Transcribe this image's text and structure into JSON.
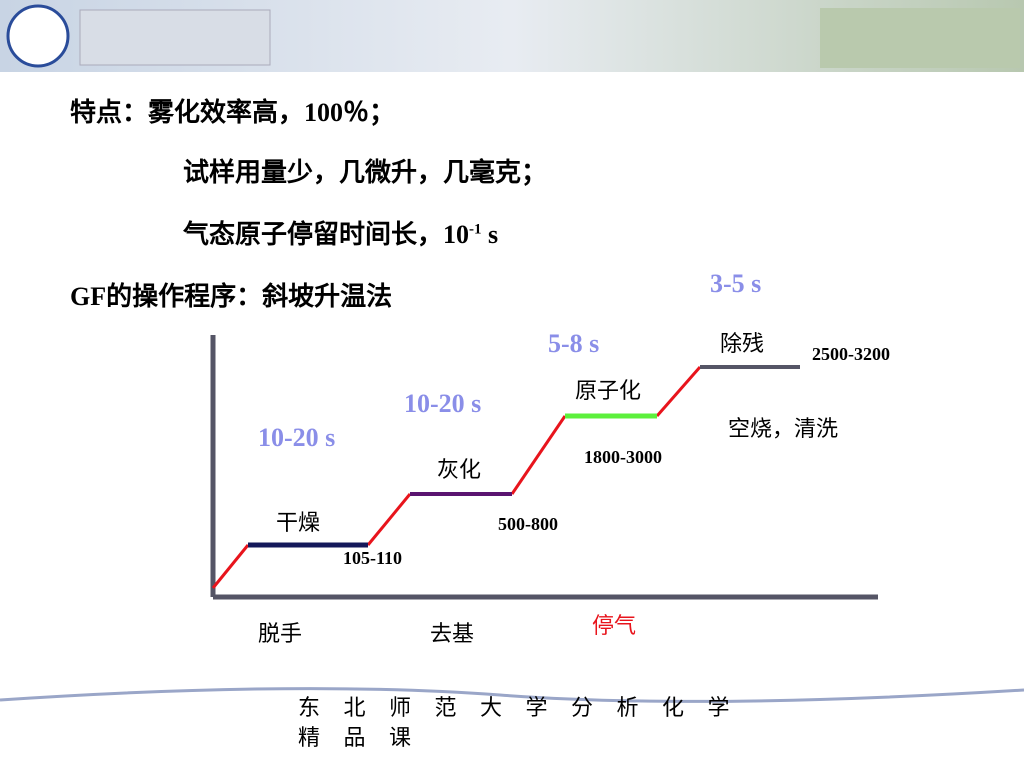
{
  "intro": {
    "lines": [
      {
        "text": "特点：雾化效率高，100％；"
      },
      {
        "text": "试样用量少，几微升，几毫克；"
      },
      {
        "text": "气态原子停留时间长，10",
        "sup": "-1",
        "tail": "s"
      },
      {
        "text": "GF的操作程序：斜坡升温法"
      }
    ]
  },
  "diagram": {
    "stages": [
      {
        "label": "干燥",
        "duration": "10-20 s",
        "temperature": "105-110"
      },
      {
        "label": "灰化",
        "duration": "10-20 s",
        "temperature": "500-800"
      },
      {
        "label": "原子化",
        "duration": "5-8 s",
        "temperature": "1800-3000"
      },
      {
        "label": "除残",
        "duration": "3-5 s",
        "temperature": "2500-3200",
        "note": "空烧，清洗"
      }
    ],
    "bottom_labels": [
      "脱手",
      "去基",
      "停气"
    ]
  },
  "footer": {
    "line1": "东 北 师 范 大 学 分 析 化 学",
    "line2": "精 品 课"
  }
}
